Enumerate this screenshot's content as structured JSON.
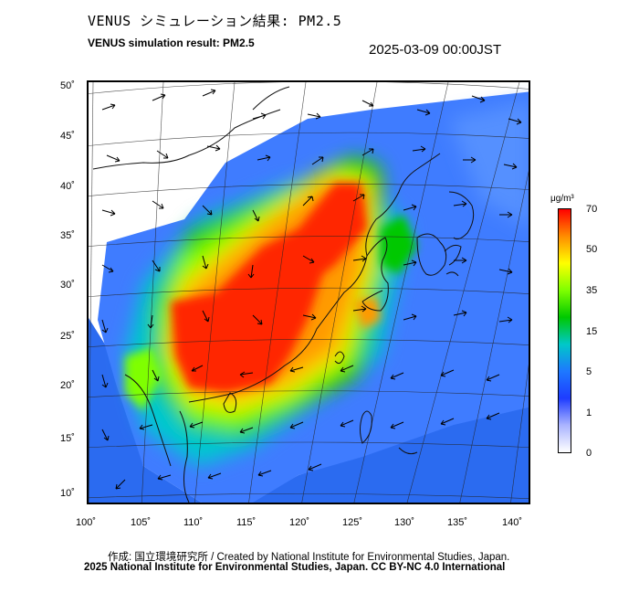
{
  "title_jp": "VENUS シミュレーション結果: PM2.5",
  "title_en": "VENUS simulation result: PM2.5",
  "timestamp": "2025-03-09 00:00JST",
  "map": {
    "lat_labels": [
      "50˚",
      "45˚",
      "40˚",
      "35˚",
      "30˚",
      "25˚",
      "20˚",
      "15˚",
      "10˚"
    ],
    "lon_labels": [
      "100˚",
      "105˚",
      "110˚",
      "115˚",
      "120˚",
      "125˚",
      "130˚",
      "135˚",
      "140˚"
    ],
    "lon_range": [
      100,
      142
    ],
    "lat_range": [
      9,
      51
    ]
  },
  "colorbar": {
    "unit": "μg/m³",
    "ticks": [
      "70",
      "50",
      "35",
      "15",
      "5",
      "1",
      "0"
    ],
    "colors": [
      "#ff0000",
      "#ff8c00",
      "#ffff00",
      "#7fff00",
      "#00c800",
      "#00c8c8",
      "#1e78ff",
      "#1e3cff",
      "#aab4ff",
      "#ffffff"
    ]
  },
  "credits": {
    "line1": "作成: 国立環境研究所 / Created by National Institute for Environmental Studies, Japan.",
    "line2": "2025 National Institute for Environmental Studies, Japan. CC BY-NC 4.0 International"
  }
}
